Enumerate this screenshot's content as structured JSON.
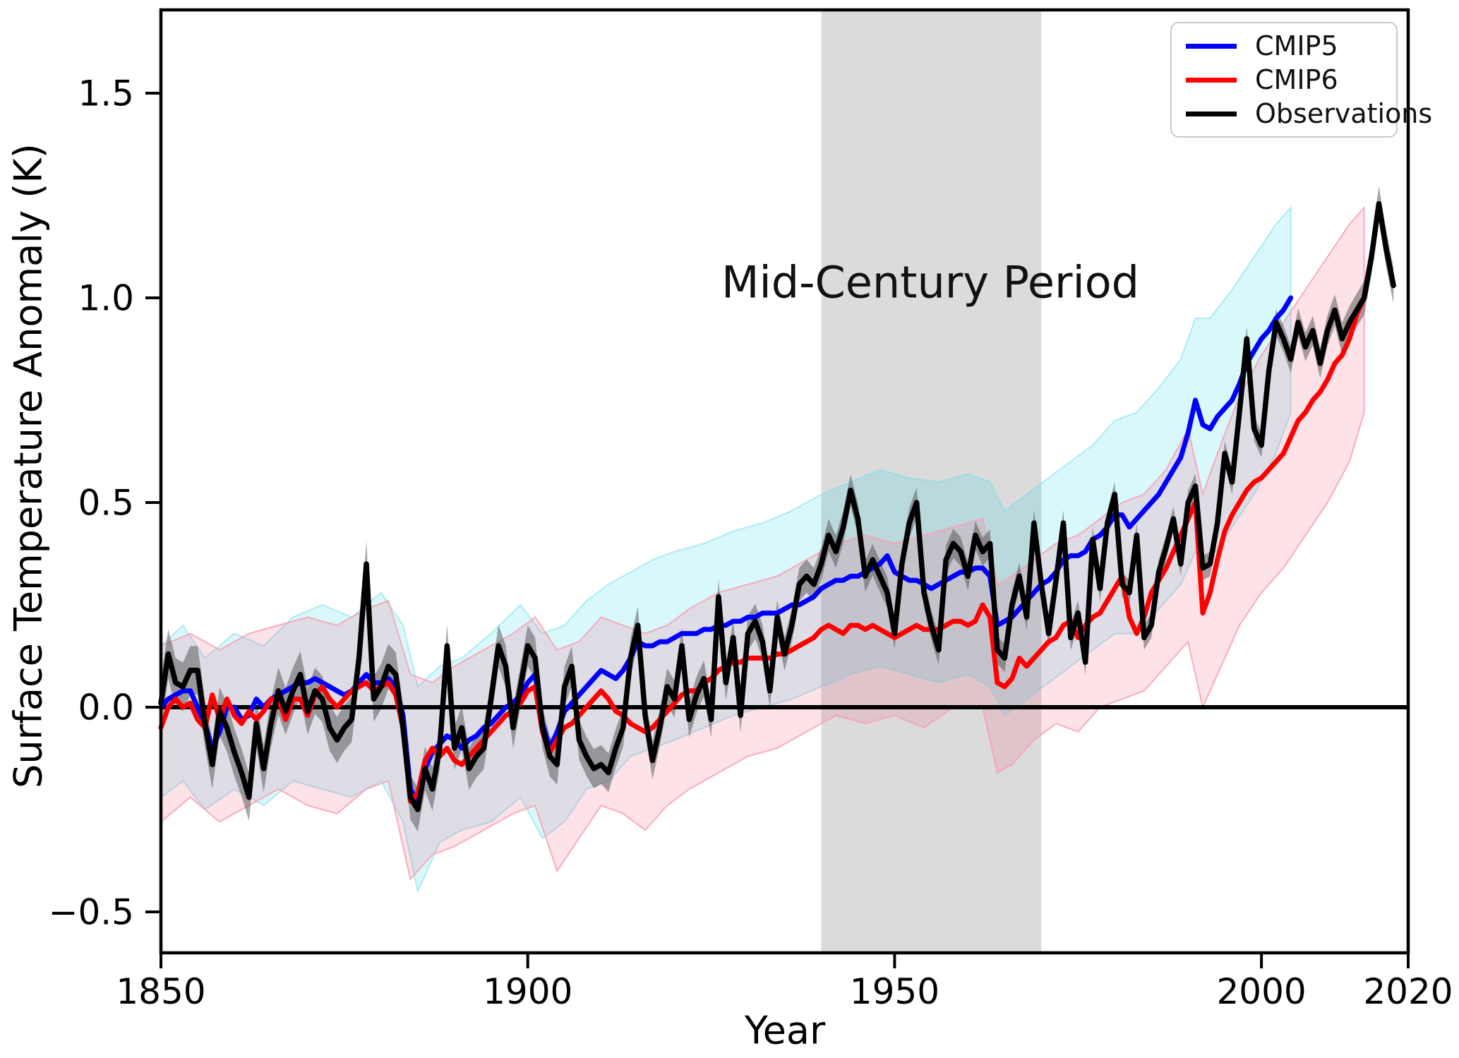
{
  "figure": {
    "ylabel": "Surface Temperature Anomaly (K)",
    "xlabel": "Year",
    "annotation": "Mid-Century Period",
    "legend": [
      {
        "label": "CMIP5",
        "color": "#0000ff"
      },
      {
        "label": "CMIP6",
        "color": "#ff0000"
      },
      {
        "label": "Observations",
        "color": "#000000"
      }
    ],
    "x_ticks": [
      {
        "v": 1850,
        "label": "1850"
      },
      {
        "v": 1900,
        "label": "1900"
      },
      {
        "v": 1950,
        "label": "1950"
      },
      {
        "v": 2000,
        "label": "2000"
      },
      {
        "v": 2020,
        "label": "2020"
      }
    ],
    "y_ticks": [
      {
        "v": -0.5,
        "label": "−0.5"
      },
      {
        "v": 0.0,
        "label": "0.0"
      },
      {
        "v": 0.5,
        "label": "0.5"
      },
      {
        "v": 1.0,
        "label": "1.0"
      },
      {
        "v": 1.5,
        "label": "1.5"
      }
    ]
  },
  "chart_data": {
    "type": "line",
    "title": "",
    "xlabel": "Year",
    "ylabel": "Surface Temperature Anomaly (K)",
    "xlim": [
      1850,
      2020
    ],
    "ylim": [
      -0.6,
      1.7034
    ],
    "grid": false,
    "legend_position": "upper right",
    "zero_line": 0.0,
    "highlight_region": {
      "label": "Mid-Century Period",
      "x_start": 1940,
      "x_end": 1970,
      "color": "#dbdbdb"
    },
    "series": [
      {
        "name": "CMIP5",
        "color": "#0000ff",
        "start_year": 1850,
        "end_year": 2004,
        "values": [
          0.0,
          0.02,
          0.03,
          0.04,
          0.04,
          0.0,
          -0.04,
          -0.1,
          -0.06,
          0.0,
          0.0,
          -0.03,
          -0.02,
          0.02,
          0.0,
          0.02,
          0.03,
          0.04,
          0.05,
          0.06,
          0.06,
          0.07,
          0.06,
          0.05,
          0.04,
          0.03,
          0.04,
          0.06,
          0.08,
          0.06,
          0.06,
          0.07,
          0.05,
          -0.02,
          -0.2,
          -0.23,
          -0.15,
          -0.11,
          -0.09,
          -0.07,
          -0.08,
          -0.1,
          -0.08,
          -0.07,
          -0.05,
          -0.04,
          -0.02,
          0.0,
          0.01,
          0.03,
          0.06,
          0.08,
          -0.04,
          -0.1,
          -0.06,
          -0.01,
          0.01,
          0.03,
          0.05,
          0.07,
          0.09,
          0.08,
          0.07,
          0.09,
          0.12,
          0.16,
          0.15,
          0.15,
          0.16,
          0.16,
          0.17,
          0.18,
          0.18,
          0.18,
          0.19,
          0.19,
          0.2,
          0.2,
          0.21,
          0.21,
          0.22,
          0.22,
          0.23,
          0.23,
          0.23,
          0.24,
          0.25,
          0.25,
          0.26,
          0.27,
          0.29,
          0.3,
          0.31,
          0.31,
          0.32,
          0.32,
          0.33,
          0.34,
          0.35,
          0.37,
          0.33,
          0.32,
          0.31,
          0.31,
          0.3,
          0.29,
          0.3,
          0.31,
          0.32,
          0.33,
          0.33,
          0.34,
          0.34,
          0.32,
          0.2,
          0.21,
          0.22,
          0.24,
          0.26,
          0.28,
          0.3,
          0.31,
          0.33,
          0.36,
          0.37,
          0.37,
          0.38,
          0.41,
          0.42,
          0.44,
          0.47,
          0.47,
          0.44,
          0.46,
          0.48,
          0.5,
          0.52,
          0.55,
          0.58,
          0.61,
          0.67,
          0.75,
          0.69,
          0.68,
          0.71,
          0.73,
          0.75,
          0.79,
          0.84,
          0.87,
          0.9,
          0.92,
          0.95,
          0.97,
          1.0
        ]
      },
      {
        "name": "CMIP6",
        "color": "#ff0000",
        "start_year": 1850,
        "end_year": 2014,
        "values": [
          -0.05,
          0.0,
          0.02,
          0.0,
          0.01,
          -0.03,
          -0.05,
          0.03,
          -0.03,
          0.02,
          -0.02,
          -0.04,
          -0.01,
          -0.03,
          -0.01,
          0.02,
          0.02,
          -0.03,
          0.02,
          0.02,
          -0.02,
          0.03,
          0.05,
          0.02,
          0.0,
          0.02,
          0.04,
          0.05,
          0.06,
          0.04,
          0.05,
          0.06,
          0.03,
          -0.05,
          -0.23,
          -0.21,
          -0.13,
          -0.1,
          -0.12,
          -0.1,
          -0.13,
          -0.14,
          -0.12,
          -0.1,
          -0.08,
          -0.06,
          -0.04,
          -0.02,
          -0.01,
          0.01,
          0.04,
          0.05,
          -0.06,
          -0.11,
          -0.08,
          -0.05,
          -0.04,
          -0.02,
          0.0,
          0.02,
          0.04,
          0.02,
          -0.01,
          -0.02,
          -0.04,
          -0.05,
          -0.06,
          -0.05,
          -0.03,
          -0.01,
          0.01,
          0.03,
          0.04,
          0.04,
          0.06,
          0.07,
          0.09,
          0.1,
          0.11,
          0.11,
          0.12,
          0.12,
          0.12,
          0.12,
          0.13,
          0.13,
          0.14,
          0.15,
          0.16,
          0.17,
          0.19,
          0.2,
          0.19,
          0.18,
          0.2,
          0.2,
          0.19,
          0.2,
          0.19,
          0.18,
          0.17,
          0.18,
          0.19,
          0.2,
          0.19,
          0.19,
          0.19,
          0.2,
          0.21,
          0.21,
          0.2,
          0.21,
          0.25,
          0.22,
          0.06,
          0.05,
          0.07,
          0.12,
          0.1,
          0.12,
          0.14,
          0.16,
          0.17,
          0.2,
          0.21,
          0.17,
          0.2,
          0.22,
          0.23,
          0.26,
          0.29,
          0.32,
          0.22,
          0.18,
          0.22,
          0.28,
          0.31,
          0.34,
          0.38,
          0.42,
          0.46,
          0.5,
          0.23,
          0.28,
          0.36,
          0.43,
          0.47,
          0.5,
          0.53,
          0.55,
          0.56,
          0.58,
          0.6,
          0.62,
          0.66,
          0.7,
          0.72,
          0.75,
          0.77,
          0.8,
          0.84,
          0.86,
          0.9,
          0.96,
          1.0
        ]
      },
      {
        "name": "Observations",
        "color": "#000000",
        "start_year": 1850,
        "end_year": 2018,
        "values": [
          0.01,
          0.13,
          0.06,
          0.05,
          0.09,
          0.09,
          -0.04,
          -0.14,
          -0.01,
          -0.05,
          -0.11,
          -0.16,
          -0.22,
          -0.04,
          -0.15,
          -0.04,
          0.04,
          -0.01,
          0.04,
          0.08,
          -0.01,
          0.04,
          0.02,
          -0.05,
          -0.08,
          -0.05,
          -0.03,
          0.12,
          0.35,
          0.02,
          0.05,
          0.1,
          0.08,
          -0.05,
          -0.22,
          -0.25,
          -0.15,
          -0.2,
          -0.1,
          0.15,
          -0.1,
          -0.05,
          -0.15,
          -0.12,
          -0.1,
          0.02,
          0.15,
          0.1,
          -0.05,
          0.05,
          0.15,
          0.12,
          -0.05,
          -0.12,
          -0.14,
          0.05,
          0.1,
          -0.08,
          -0.12,
          -0.15,
          -0.14,
          -0.16,
          -0.1,
          -0.05,
          0.12,
          0.2,
          -0.02,
          -0.13,
          -0.05,
          0.05,
          0.02,
          0.15,
          -0.03,
          0.03,
          0.07,
          -0.03,
          0.27,
          0.06,
          0.17,
          -0.02,
          0.18,
          0.21,
          0.16,
          0.04,
          0.22,
          0.13,
          0.2,
          0.3,
          0.32,
          0.3,
          0.35,
          0.42,
          0.38,
          0.44,
          0.53,
          0.46,
          0.32,
          0.36,
          0.32,
          0.28,
          0.18,
          0.35,
          0.45,
          0.5,
          0.28,
          0.2,
          0.14,
          0.36,
          0.4,
          0.38,
          0.32,
          0.42,
          0.38,
          0.4,
          0.14,
          0.12,
          0.25,
          0.32,
          0.22,
          0.45,
          0.3,
          0.18,
          0.31,
          0.45,
          0.17,
          0.23,
          0.11,
          0.41,
          0.29,
          0.45,
          0.52,
          0.3,
          0.28,
          0.42,
          0.17,
          0.2,
          0.33,
          0.39,
          0.46,
          0.35,
          0.5,
          0.54,
          0.34,
          0.35,
          0.45,
          0.62,
          0.55,
          0.72,
          0.9,
          0.68,
          0.64,
          0.82,
          0.94,
          0.9,
          0.85,
          0.94,
          0.88,
          0.92,
          0.84,
          0.92,
          0.97,
          0.9,
          0.94,
          0.97,
          1.0,
          1.1,
          1.23,
          1.12,
          1.03
        ]
      }
    ],
    "bands": [
      {
        "name": "CMIP5 model spread",
        "fill": "rgba(0,210,235,0.15)",
        "edge": "rgba(120,220,235,0.55)",
        "keypoints": [
          [
            1850,
            -0.22,
            0.15
          ],
          [
            1853,
            -0.18,
            0.2
          ],
          [
            1856,
            -0.25,
            0.12
          ],
          [
            1860,
            -0.2,
            0.18
          ],
          [
            1864,
            -0.24,
            0.15
          ],
          [
            1868,
            -0.18,
            0.22
          ],
          [
            1872,
            -0.2,
            0.25
          ],
          [
            1876,
            -0.22,
            0.22
          ],
          [
            1880,
            -0.18,
            0.28
          ],
          [
            1883,
            -0.28,
            0.2
          ],
          [
            1885,
            -0.45,
            0.05
          ],
          [
            1888,
            -0.33,
            0.1
          ],
          [
            1891,
            -0.3,
            0.12
          ],
          [
            1895,
            -0.28,
            0.18
          ],
          [
            1899,
            -0.22,
            0.25
          ],
          [
            1902,
            -0.32,
            0.18
          ],
          [
            1905,
            -0.28,
            0.2
          ],
          [
            1908,
            -0.2,
            0.26
          ],
          [
            1911,
            -0.18,
            0.3
          ],
          [
            1914,
            -0.12,
            0.33
          ],
          [
            1917,
            -0.1,
            0.36
          ],
          [
            1920,
            -0.08,
            0.38
          ],
          [
            1924,
            -0.05,
            0.4
          ],
          [
            1928,
            -0.02,
            0.43
          ],
          [
            1932,
            0.0,
            0.45
          ],
          [
            1936,
            0.02,
            0.48
          ],
          [
            1940,
            0.05,
            0.52
          ],
          [
            1944,
            0.08,
            0.55
          ],
          [
            1948,
            0.1,
            0.58
          ],
          [
            1952,
            0.08,
            0.56
          ],
          [
            1956,
            0.06,
            0.55
          ],
          [
            1960,
            0.08,
            0.57
          ],
          [
            1963,
            0.05,
            0.55
          ],
          [
            1965,
            -0.02,
            0.48
          ],
          [
            1968,
            0.02,
            0.52
          ],
          [
            1971,
            0.06,
            0.56
          ],
          [
            1974,
            0.1,
            0.6
          ],
          [
            1977,
            0.14,
            0.64
          ],
          [
            1980,
            0.18,
            0.7
          ],
          [
            1983,
            0.18,
            0.72
          ],
          [
            1986,
            0.24,
            0.78
          ],
          [
            1989,
            0.3,
            0.85
          ],
          [
            1991,
            0.38,
            0.95
          ],
          [
            1993,
            0.36,
            0.95
          ],
          [
            1996,
            0.44,
            1.02
          ],
          [
            1999,
            0.52,
            1.1
          ],
          [
            2002,
            0.62,
            1.18
          ],
          [
            2004,
            0.72,
            1.22
          ]
        ]
      },
      {
        "name": "CMIP6 model spread",
        "fill": "rgba(245,95,125,0.18)",
        "edge": "rgba(248,160,178,0.85)",
        "keypoints": [
          [
            1850,
            -0.28,
            0.15
          ],
          [
            1854,
            -0.22,
            0.18
          ],
          [
            1858,
            -0.28,
            0.14
          ],
          [
            1862,
            -0.24,
            0.18
          ],
          [
            1866,
            -0.2,
            0.2
          ],
          [
            1870,
            -0.24,
            0.22
          ],
          [
            1874,
            -0.26,
            0.2
          ],
          [
            1878,
            -0.2,
            0.24
          ],
          [
            1881,
            -0.18,
            0.26
          ],
          [
            1884,
            -0.42,
            0.08
          ],
          [
            1887,
            -0.36,
            0.06
          ],
          [
            1890,
            -0.34,
            0.1
          ],
          [
            1894,
            -0.3,
            0.14
          ],
          [
            1898,
            -0.26,
            0.18
          ],
          [
            1901,
            -0.24,
            0.22
          ],
          [
            1904,
            -0.4,
            0.14
          ],
          [
            1907,
            -0.32,
            0.16
          ],
          [
            1910,
            -0.24,
            0.22
          ],
          [
            1913,
            -0.26,
            0.2
          ],
          [
            1916,
            -0.3,
            0.18
          ],
          [
            1919,
            -0.24,
            0.2
          ],
          [
            1922,
            -0.2,
            0.24
          ],
          [
            1926,
            -0.16,
            0.28
          ],
          [
            1930,
            -0.12,
            0.3
          ],
          [
            1934,
            -0.1,
            0.32
          ],
          [
            1938,
            -0.06,
            0.36
          ],
          [
            1942,
            -0.02,
            0.4
          ],
          [
            1946,
            -0.04,
            0.42
          ],
          [
            1950,
            -0.02,
            0.4
          ],
          [
            1954,
            -0.05,
            0.42
          ],
          [
            1958,
            0.0,
            0.44
          ],
          [
            1962,
            0.0,
            0.46
          ],
          [
            1964,
            -0.16,
            0.3
          ],
          [
            1966,
            -0.14,
            0.32
          ],
          [
            1969,
            -0.08,
            0.36
          ],
          [
            1972,
            -0.04,
            0.4
          ],
          [
            1975,
            -0.06,
            0.42
          ],
          [
            1978,
            0.0,
            0.46
          ],
          [
            1981,
            0.02,
            0.5
          ],
          [
            1984,
            0.04,
            0.52
          ],
          [
            1987,
            0.1,
            0.58
          ],
          [
            1990,
            0.16,
            0.68
          ],
          [
            1992,
            0.0,
            0.52
          ],
          [
            1994,
            0.08,
            0.62
          ],
          [
            1997,
            0.2,
            0.76
          ],
          [
            2000,
            0.28,
            0.86
          ],
          [
            2003,
            0.34,
            0.94
          ],
          [
            2006,
            0.42,
            1.02
          ],
          [
            2009,
            0.5,
            1.1
          ],
          [
            2012,
            0.6,
            1.18
          ],
          [
            2014,
            0.72,
            1.22
          ]
        ]
      },
      {
        "name": "Observations uncertainty",
        "fill": "rgba(80,80,80,0.5)",
        "edge": "none",
        "follows": "Observations",
        "halfwidth_keypoints": [
          [
            1850,
            0.06
          ],
          [
            1880,
            0.055
          ],
          [
            1900,
            0.05
          ],
          [
            1920,
            0.045
          ],
          [
            1940,
            0.04
          ],
          [
            1960,
            0.035
          ],
          [
            1980,
            0.03
          ],
          [
            2000,
            0.03
          ],
          [
            2018,
            0.045
          ]
        ]
      }
    ]
  }
}
